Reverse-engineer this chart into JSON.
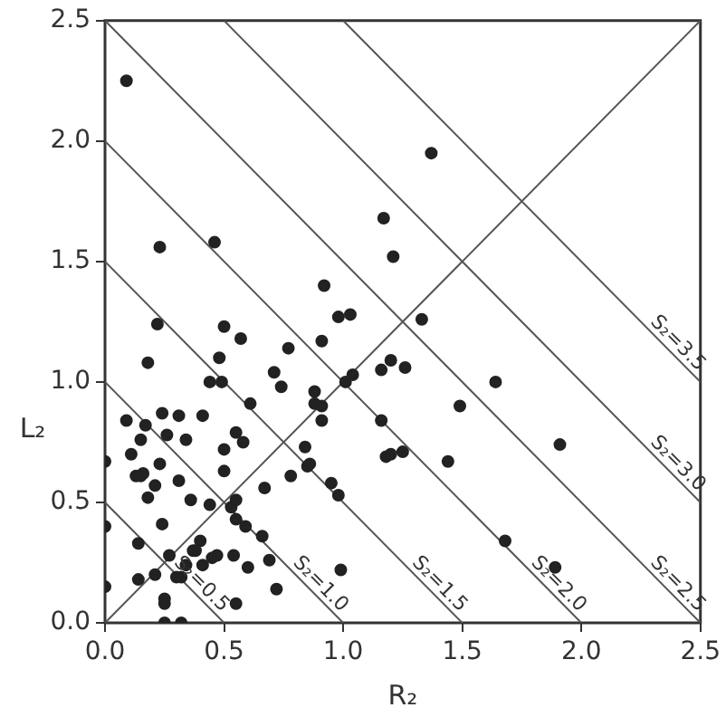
{
  "chart_data": {
    "type": "scatter",
    "xlabel": "R₂",
    "ylabel": "L₂",
    "xlim": [
      0,
      2.5
    ],
    "ylim": [
      0,
      2.5
    ],
    "xticks": [
      {
        "value": 0,
        "label": "0.0"
      },
      {
        "value": 0.5,
        "label": "0.5"
      },
      {
        "value": 1,
        "label": "1.0"
      },
      {
        "value": 1.5,
        "label": "1.5"
      },
      {
        "value": 2,
        "label": "2.0"
      },
      {
        "value": 2.5,
        "label": "2.5"
      }
    ],
    "yticks": [
      {
        "value": 0,
        "label": "0.0"
      },
      {
        "value": 0.5,
        "label": "0.5"
      },
      {
        "value": 1,
        "label": "1.0"
      },
      {
        "value": 1.5,
        "label": "1.5"
      },
      {
        "value": 2,
        "label": "2.0"
      },
      {
        "value": 2.5,
        "label": "2.5"
      }
    ],
    "series": [
      {
        "marker": "circle",
        "color": "#222222",
        "x": [
          0.09,
          1.17,
          0.23,
          0.46,
          1.21,
          0.92,
          0.98,
          1.03,
          0.22,
          0.5,
          1.37,
          1.33,
          0.57,
          0.77,
          0.91,
          0.18,
          0.48,
          0.44,
          0.49,
          0.71,
          0.74,
          0.88,
          1.04,
          1.01,
          1.16,
          1.2,
          1.26,
          0.61,
          0.09,
          0.17,
          0.24,
          0.31,
          0.41,
          0.26,
          0.34,
          0.15,
          0.11,
          0.55,
          0.58,
          0.5,
          0.88,
          0.91,
          0.91,
          1.16,
          0.84,
          0,
          0.23,
          0.5,
          0.13,
          0.15,
          0.16,
          0.31,
          0.21,
          0.18,
          0.36,
          0.44,
          0.53,
          0.55,
          0.67,
          0.78,
          0.85,
          0.86,
          0.95,
          0.98,
          1.18,
          1.2,
          1.25,
          0,
          0.24,
          0.55,
          0.59,
          0.66,
          0.14,
          0.4,
          0.38,
          0.37,
          0.27,
          0.47,
          0.45,
          0.41,
          0.54,
          0.69,
          0.34,
          0.6,
          0.99,
          0.14,
          0.21,
          0.3,
          0.32,
          0,
          0.72,
          0.25,
          0.25,
          0.55,
          0.25,
          0.32,
          1.64,
          1.49,
          1.44,
          1.91,
          1.68,
          1.89
        ],
        "values": [
          2.25,
          1.68,
          1.56,
          1.58,
          1.52,
          1.4,
          1.27,
          1.28,
          1.24,
          1.23,
          1.95,
          1.26,
          1.18,
          1.14,
          1.17,
          1.08,
          1.1,
          1.0,
          1.0,
          1.04,
          0.98,
          0.96,
          1.03,
          1.0,
          1.05,
          1.09,
          1.06,
          0.91,
          0.84,
          0.82,
          0.87,
          0.86,
          0.86,
          0.78,
          0.76,
          0.76,
          0.7,
          0.79,
          0.75,
          0.72,
          0.91,
          0.9,
          0.84,
          0.84,
          0.73,
          0.67,
          0.66,
          0.63,
          0.61,
          0.61,
          0.62,
          0.59,
          0.57,
          0.52,
          0.51,
          0.49,
          0.48,
          0.51,
          0.56,
          0.61,
          0.65,
          0.66,
          0.58,
          0.53,
          0.69,
          0.7,
          0.71,
          0.4,
          0.41,
          0.43,
          0.4,
          0.36,
          0.33,
          0.34,
          0.3,
          0.3,
          0.28,
          0.28,
          0.27,
          0.24,
          0.28,
          0.26,
          0.24,
          0.23,
          0.22,
          0.18,
          0.2,
          0.19,
          0.19,
          0.15,
          0.14,
          0.1,
          0.08,
          0.08,
          0,
          0,
          1.0,
          0.9,
          0.67,
          0.74,
          0.34,
          0.23
        ]
      },
      {
        "type": "line",
        "color": "#555555",
        "x": [
          0,
          2.5
        ],
        "values": [
          0,
          2.5
        ]
      },
      {
        "type": "line",
        "name": "S₂=0.5",
        "color": "#555555",
        "x": [
          0,
          0.5
        ],
        "values": [
          0.5,
          0
        ]
      },
      {
        "type": "line",
        "name": "S₂=1.0",
        "color": "#555555",
        "x": [
          0,
          1
        ],
        "values": [
          1,
          0
        ]
      },
      {
        "type": "line",
        "name": "S₂=1.5",
        "color": "#555555",
        "x": [
          0,
          1.5
        ],
        "values": [
          1.5,
          0
        ]
      },
      {
        "type": "line",
        "name": "S₂=2.0",
        "color": "#555555",
        "x": [
          0,
          2
        ],
        "values": [
          2,
          0
        ]
      },
      {
        "type": "line",
        "name": "S₂=2.5",
        "color": "#555555",
        "x": [
          0,
          2.5
        ],
        "values": [
          2.5,
          0
        ]
      },
      {
        "type": "line",
        "name": "S₂=3.0",
        "color": "#555555",
        "x": [
          0.5,
          2.5
        ],
        "values": [
          2.5,
          0.5
        ]
      },
      {
        "type": "line",
        "name": "S₂=3.5",
        "color": "#555555",
        "x": [
          1,
          2.5
        ],
        "values": [
          2.5,
          1
        ]
      }
    ]
  }
}
